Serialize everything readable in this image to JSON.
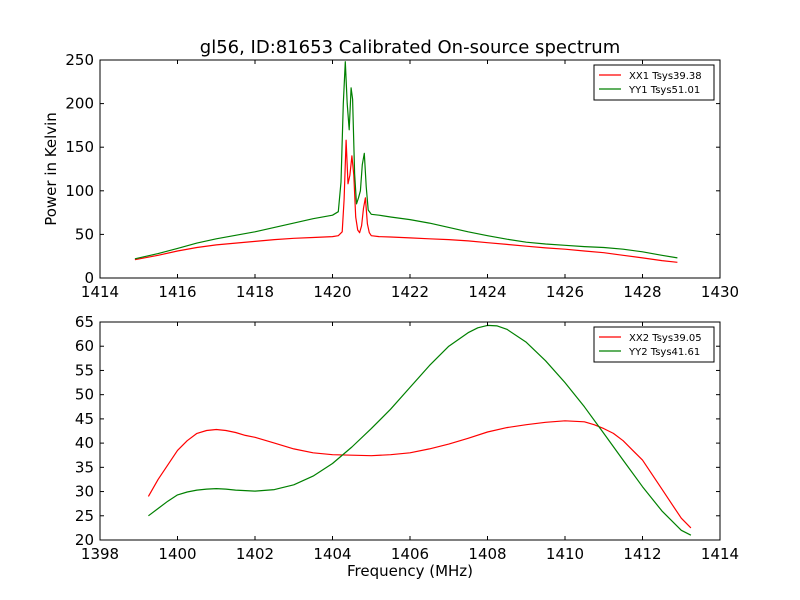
{
  "figure": {
    "title": "gl56, ID:81653 Calibrated On-source spectrum"
  },
  "chart_data": [
    {
      "type": "line",
      "title": "gl56, ID:81653 Calibrated On-source spectrum",
      "xlabel": "",
      "ylabel": "Power in Kelvin",
      "xlim": [
        1414,
        1430
      ],
      "ylim": [
        0,
        250
      ],
      "xticks": [
        "1414",
        "1416",
        "1418",
        "1420",
        "1422",
        "1424",
        "1426",
        "1428",
        "1430"
      ],
      "yticks": [
        "0",
        "50",
        "100",
        "150",
        "200",
        "250"
      ],
      "grid": false,
      "legend": "top-right",
      "series": [
        {
          "name": "XX1 Tsys39.38",
          "color": "#ff0000",
          "x": [
            1414.9,
            1415.5,
            1416.0,
            1416.5,
            1417.0,
            1417.5,
            1418.0,
            1418.5,
            1419.0,
            1419.5,
            1420.0,
            1420.15,
            1420.25,
            1420.3,
            1420.35,
            1420.4,
            1420.45,
            1420.5,
            1420.55,
            1420.6,
            1420.65,
            1420.7,
            1420.75,
            1420.8,
            1420.85,
            1420.9,
            1420.95,
            1421.0,
            1421.2,
            1421.5,
            1422.0,
            1422.5,
            1423.0,
            1423.5,
            1424.0,
            1424.5,
            1425.0,
            1425.5,
            1426.0,
            1426.5,
            1427.0,
            1427.5,
            1428.0,
            1428.5,
            1428.9
          ],
          "y": [
            21,
            26,
            31,
            35,
            38,
            40,
            42,
            44,
            45.5,
            46.5,
            47.5,
            48.5,
            53,
            90,
            158,
            108,
            118,
            140,
            118,
            70,
            55,
            52,
            60,
            80,
            92,
            62,
            52,
            48.5,
            47.5,
            47,
            46,
            45,
            44,
            42.5,
            40.5,
            38.5,
            36.5,
            34.5,
            33,
            31,
            29,
            26,
            23,
            20,
            18
          ]
        },
        {
          "name": "YY1 Tsys51.01",
          "color": "#008000",
          "x": [
            1414.9,
            1415.5,
            1416.0,
            1416.5,
            1417.0,
            1417.5,
            1418.0,
            1418.5,
            1419.0,
            1419.5,
            1420.0,
            1420.15,
            1420.22,
            1420.28,
            1420.33,
            1420.38,
            1420.43,
            1420.48,
            1420.52,
            1420.57,
            1420.62,
            1420.67,
            1420.72,
            1420.77,
            1420.82,
            1420.87,
            1420.92,
            1421.0,
            1421.2,
            1421.5,
            1422.0,
            1422.5,
            1423.0,
            1423.5,
            1424.0,
            1424.5,
            1425.0,
            1425.5,
            1426.0,
            1426.5,
            1427.0,
            1427.5,
            1428.0,
            1428.5,
            1428.9
          ],
          "y": [
            22,
            28,
            34,
            40,
            45,
            49,
            53,
            58,
            63,
            68,
            72,
            76,
            110,
            200,
            248,
            200,
            170,
            218,
            205,
            120,
            85,
            92,
            100,
            130,
            143,
            105,
            78,
            73,
            72,
            70,
            67,
            63,
            58,
            53,
            48.5,
            44.5,
            41,
            39,
            37.5,
            36,
            35,
            33,
            30,
            26,
            23
          ]
        }
      ]
    },
    {
      "type": "line",
      "title": "",
      "xlabel": "Frequency (MHz)",
      "ylabel": "",
      "xlim": [
        1398,
        1414
      ],
      "ylim": [
        20,
        65
      ],
      "xticks": [
        "1398",
        "1400",
        "1402",
        "1404",
        "1406",
        "1408",
        "1410",
        "1412",
        "1414"
      ],
      "yticks": [
        "20",
        "25",
        "30",
        "35",
        "40",
        "45",
        "50",
        "55",
        "60",
        "65"
      ],
      "grid": false,
      "legend": "top-right",
      "series": [
        {
          "name": "XX2 Tsys39.05",
          "color": "#ff0000",
          "x": [
            1399.25,
            1399.5,
            1399.75,
            1400.0,
            1400.25,
            1400.5,
            1400.75,
            1401.0,
            1401.25,
            1401.5,
            1401.75,
            1402.0,
            1402.5,
            1403.0,
            1403.5,
            1404.0,
            1404.5,
            1405.0,
            1405.5,
            1406.0,
            1406.5,
            1407.0,
            1407.5,
            1408.0,
            1408.5,
            1409.0,
            1409.5,
            1410.0,
            1410.5,
            1410.75,
            1411.0,
            1411.25,
            1411.5,
            1411.75,
            1412.0,
            1412.25,
            1412.5,
            1412.75,
            1413.0,
            1413.25
          ],
          "y": [
            29,
            32.5,
            35.5,
            38.5,
            40.5,
            42,
            42.6,
            42.8,
            42.6,
            42.2,
            41.6,
            41.2,
            40,
            38.8,
            38,
            37.6,
            37.5,
            37.4,
            37.6,
            38,
            38.8,
            39.8,
            41,
            42.3,
            43.2,
            43.8,
            44.3,
            44.6,
            44.4,
            43.8,
            43,
            42,
            40.5,
            38.5,
            36.5,
            33.5,
            30.5,
            27.5,
            24.5,
            22.5
          ]
        },
        {
          "name": "YY2 Tsys41.61",
          "color": "#008000",
          "x": [
            1399.25,
            1399.5,
            1399.75,
            1400.0,
            1400.25,
            1400.5,
            1400.75,
            1401.0,
            1401.25,
            1401.5,
            1402.0,
            1402.5,
            1403.0,
            1403.5,
            1404.0,
            1404.5,
            1405.0,
            1405.5,
            1406.0,
            1406.5,
            1407.0,
            1407.5,
            1407.75,
            1408.0,
            1408.25,
            1408.5,
            1409.0,
            1409.5,
            1410.0,
            1410.5,
            1411.0,
            1411.5,
            1412.0,
            1412.5,
            1413.0,
            1413.25
          ],
          "y": [
            25,
            26.5,
            28,
            29.3,
            29.9,
            30.3,
            30.5,
            30.6,
            30.5,
            30.3,
            30.1,
            30.4,
            31.4,
            33.2,
            35.8,
            39.2,
            43,
            47,
            51.5,
            56,
            60,
            62.8,
            63.8,
            64.3,
            64.2,
            63.5,
            60.8,
            57,
            52.5,
            47.5,
            42,
            36.5,
            31,
            26,
            22,
            21
          ]
        }
      ]
    }
  ]
}
